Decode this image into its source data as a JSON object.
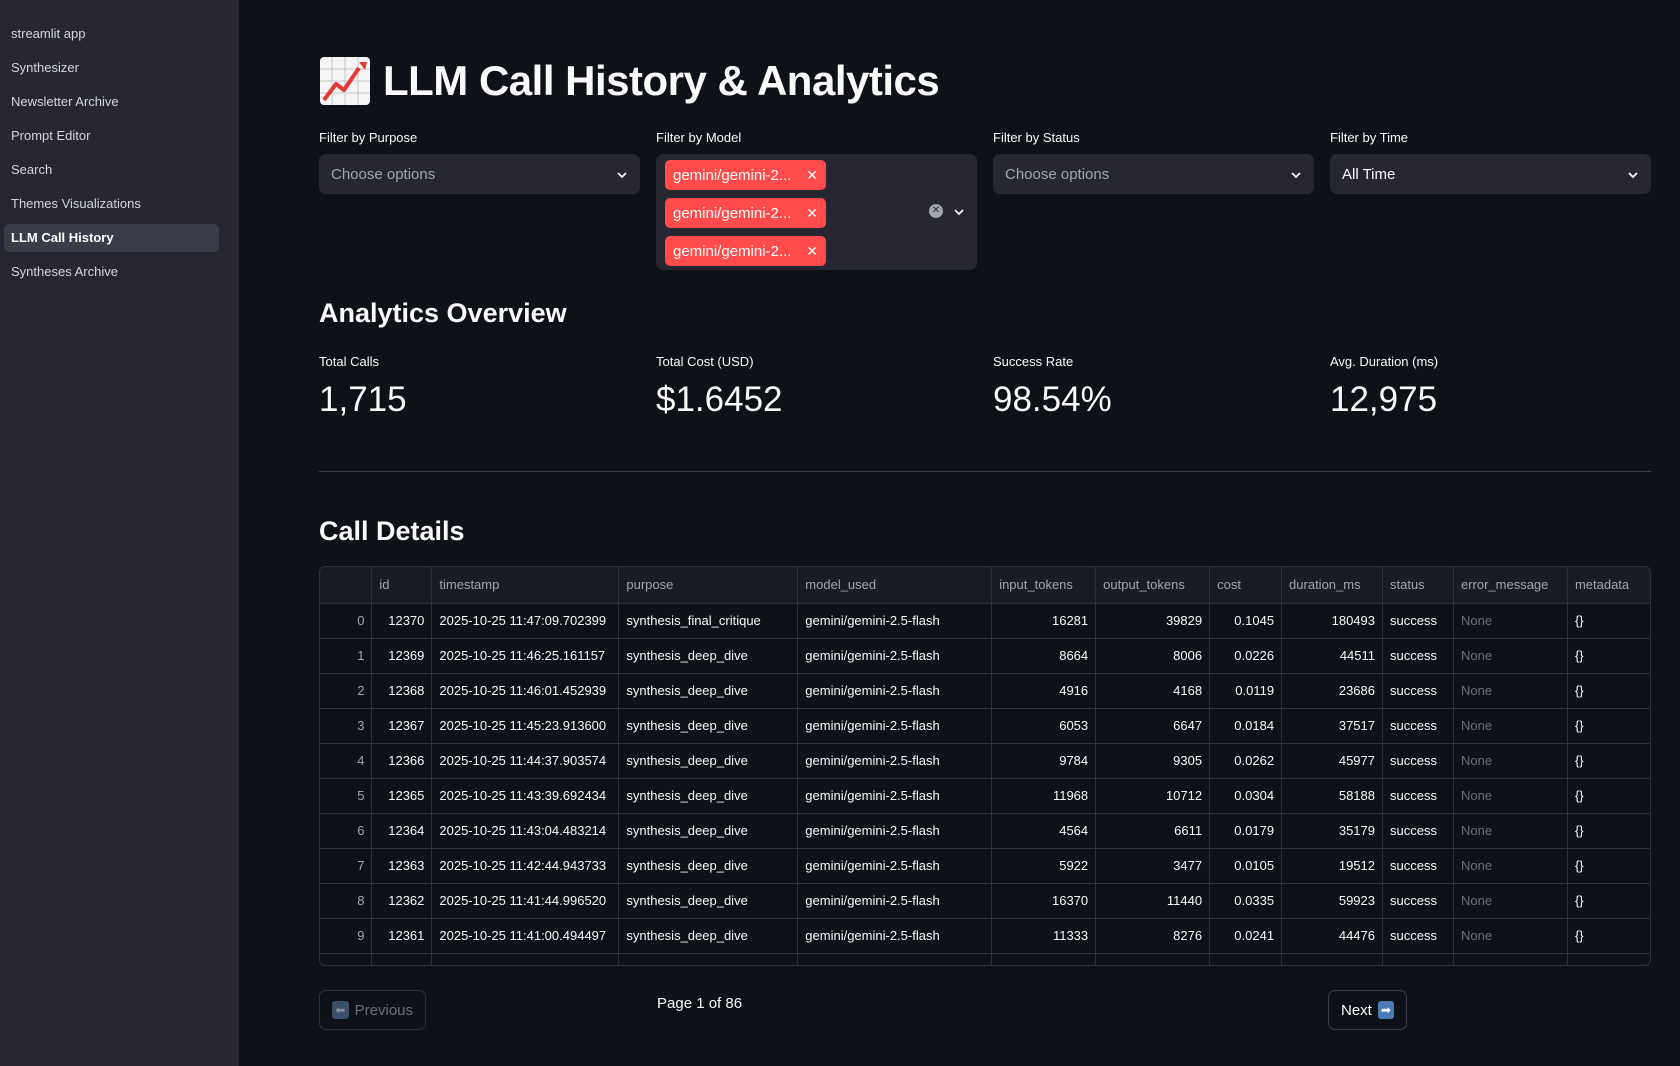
{
  "sidebar": {
    "items": [
      {
        "label": "streamlit app",
        "active": false
      },
      {
        "label": "Synthesizer",
        "active": false
      },
      {
        "label": "Newsletter Archive",
        "active": false
      },
      {
        "label": "Prompt Editor",
        "active": false
      },
      {
        "label": "Search",
        "active": false
      },
      {
        "label": "Themes Visualizations",
        "active": false
      },
      {
        "label": "LLM Call History",
        "active": true
      },
      {
        "label": "Syntheses Archive",
        "active": false
      }
    ]
  },
  "header": {
    "title": "LLM Call History & Analytics",
    "icon": "chart-increasing-icon"
  },
  "filters": {
    "purpose": {
      "label": "Filter by Purpose",
      "placeholder": "Choose options"
    },
    "model": {
      "label": "Filter by Model",
      "chips": [
        "gemini/gemini-2...",
        "gemini/gemini-2...",
        "gemini/gemini-2..."
      ]
    },
    "status": {
      "label": "Filter by Status",
      "placeholder": "Choose options"
    },
    "time": {
      "label": "Filter by Time",
      "value": "All Time"
    }
  },
  "analytics": {
    "heading": "Analytics Overview",
    "metrics": [
      {
        "label": "Total Calls",
        "value": "1,715"
      },
      {
        "label": "Total Cost (USD)",
        "value": "$1.6452"
      },
      {
        "label": "Success Rate",
        "value": "98.54%"
      },
      {
        "label": "Avg. Duration (ms)",
        "value": "12,975"
      }
    ]
  },
  "details": {
    "heading": "Call Details",
    "columns": [
      "",
      "id",
      "timestamp",
      "purpose",
      "model_used",
      "input_tokens",
      "output_tokens",
      "cost",
      "duration_ms",
      "status",
      "error_message",
      "metadata"
    ],
    "rows": [
      [
        "0",
        "12370",
        "2025-10-25 11:47:09.702399",
        "synthesis_final_critique",
        "gemini/gemini-2.5-flash",
        "16281",
        "39829",
        "0.1045",
        "180493",
        "success",
        "None",
        "{}"
      ],
      [
        "1",
        "12369",
        "2025-10-25 11:46:25.161157",
        "synthesis_deep_dive",
        "gemini/gemini-2.5-flash",
        "8664",
        "8006",
        "0.0226",
        "44511",
        "success",
        "None",
        "{}"
      ],
      [
        "2",
        "12368",
        "2025-10-25 11:46:01.452939",
        "synthesis_deep_dive",
        "gemini/gemini-2.5-flash",
        "4916",
        "4168",
        "0.0119",
        "23686",
        "success",
        "None",
        "{}"
      ],
      [
        "3",
        "12367",
        "2025-10-25 11:45:23.913600",
        "synthesis_deep_dive",
        "gemini/gemini-2.5-flash",
        "6053",
        "6647",
        "0.0184",
        "37517",
        "success",
        "None",
        "{}"
      ],
      [
        "4",
        "12366",
        "2025-10-25 11:44:37.903574",
        "synthesis_deep_dive",
        "gemini/gemini-2.5-flash",
        "9784",
        "9305",
        "0.0262",
        "45977",
        "success",
        "None",
        "{}"
      ],
      [
        "5",
        "12365",
        "2025-10-25 11:43:39.692434",
        "synthesis_deep_dive",
        "gemini/gemini-2.5-flash",
        "11968",
        "10712",
        "0.0304",
        "58188",
        "success",
        "None",
        "{}"
      ],
      [
        "6",
        "12364",
        "2025-10-25 11:43:04.483214",
        "synthesis_deep_dive",
        "gemini/gemini-2.5-flash",
        "4564",
        "6611",
        "0.0179",
        "35179",
        "success",
        "None",
        "{}"
      ],
      [
        "7",
        "12363",
        "2025-10-25 11:42:44.943733",
        "synthesis_deep_dive",
        "gemini/gemini-2.5-flash",
        "5922",
        "3477",
        "0.0105",
        "19512",
        "success",
        "None",
        "{}"
      ],
      [
        "8",
        "12362",
        "2025-10-25 11:41:44.996520",
        "synthesis_deep_dive",
        "gemini/gemini-2.5-flash",
        "16370",
        "11440",
        "0.0335",
        "59923",
        "success",
        "None",
        "{}"
      ],
      [
        "9",
        "12361",
        "2025-10-25 11:41:00.494497",
        "synthesis_deep_dive",
        "gemini/gemini-2.5-flash",
        "11333",
        "8276",
        "0.0241",
        "44476",
        "success",
        "None",
        "{}"
      ]
    ]
  },
  "pagination": {
    "previous_label": "Previous",
    "previous_icon": "left-arrow-icon",
    "next_label": "Next",
    "next_icon": "right-arrow-icon",
    "page_info": "Page 1 of 86"
  },
  "colors": {
    "background": "#0e1117",
    "sidebar": "#262730",
    "accent": "#ff4b4b"
  }
}
